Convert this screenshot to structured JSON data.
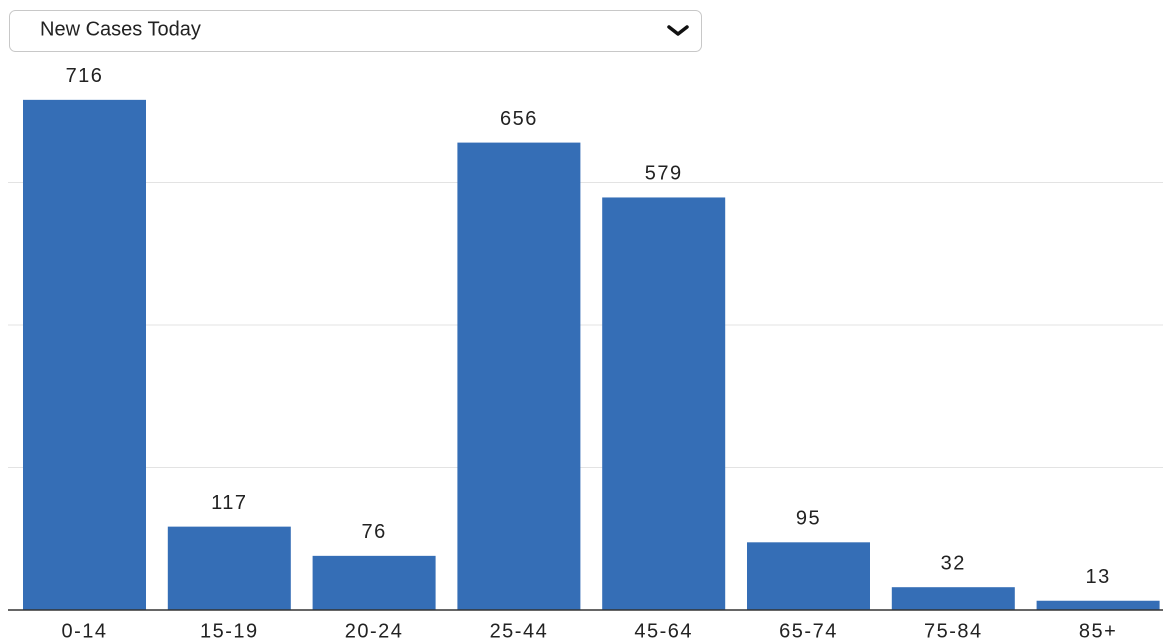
{
  "dropdown": {
    "selected": "New Cases Today"
  },
  "chart_data": {
    "type": "bar",
    "categories": [
      "0-14",
      "15-19",
      "20-24",
      "25-44",
      "45-64",
      "65-74",
      "75-84",
      "85+"
    ],
    "values": [
      716,
      117,
      76,
      656,
      579,
      95,
      32,
      13
    ],
    "color": "#356eb6",
    "ylim": [
      0,
      800
    ],
    "yticks": [
      0,
      200,
      400,
      600
    ],
    "grid": true
  }
}
